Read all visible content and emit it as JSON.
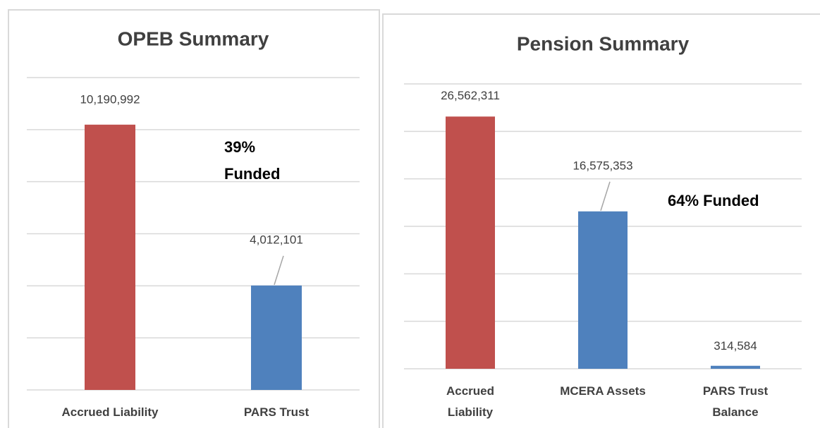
{
  "chart_data": [
    {
      "type": "bar",
      "title": "OPEB Summary",
      "categories": [
        "Accrued Liability",
        "PARS Trust"
      ],
      "values": [
        10190992,
        4012101
      ],
      "value_labels": [
        "10,190,992",
        "4,012,101"
      ],
      "colors": [
        "#c0504d",
        "#4f81bd"
      ],
      "ylim": [
        0,
        12000000
      ],
      "yticks": [
        0,
        2000000,
        4000000,
        6000000,
        8000000,
        10000000,
        12000000
      ],
      "grid": true,
      "annotation": "39% Funded"
    },
    {
      "type": "bar",
      "title": "Pension Summary",
      "categories": [
        "Accrued Liability",
        "MCERA Assets",
        "PARS Trust Balance"
      ],
      "values": [
        26562311,
        16575353,
        314584
      ],
      "value_labels": [
        "26,562,311",
        "16,575,353",
        "314,584"
      ],
      "colors": [
        "#c0504d",
        "#4f81bd",
        "#4f81bd"
      ],
      "ylim": [
        0,
        30000000
      ],
      "yticks": [
        0,
        5000000,
        10000000,
        15000000,
        20000000,
        25000000,
        30000000
      ],
      "grid": true,
      "annotation": "64% Funded"
    }
  ]
}
